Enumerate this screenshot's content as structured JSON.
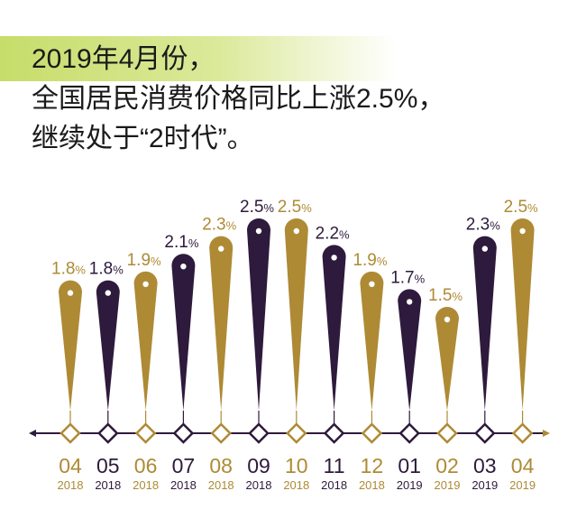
{
  "headline": {
    "line1": "2019年4月份，",
    "line2": "全国居民消费价格同比上涨2.5%，",
    "line3": "继续处于“2时代”。"
  },
  "colors": {
    "gold": "#ae8a35",
    "purple": "#2e1a3c",
    "axis": "#2e1a3c",
    "diamond_fill": "#ffffff",
    "highlight_band": "#c6dd6a"
  },
  "chart_data": {
    "type": "bar",
    "unit": "%",
    "categories": [
      "04",
      "05",
      "06",
      "07",
      "08",
      "09",
      "10",
      "11",
      "12",
      "01",
      "02",
      "03",
      "04"
    ],
    "years": [
      "2018",
      "2018",
      "2018",
      "2018",
      "2018",
      "2018",
      "2018",
      "2018",
      "2018",
      "2019",
      "2019",
      "2019",
      "2019"
    ],
    "values": [
      1.8,
      1.8,
      1.9,
      2.1,
      2.3,
      2.5,
      2.5,
      2.2,
      1.9,
      1.7,
      1.5,
      2.3,
      2.5
    ],
    "colors": [
      "gold",
      "purple",
      "gold",
      "purple",
      "gold",
      "purple",
      "gold",
      "purple",
      "gold",
      "purple",
      "gold",
      "purple",
      "gold"
    ],
    "title": "",
    "xlabel": "",
    "ylabel": ""
  }
}
